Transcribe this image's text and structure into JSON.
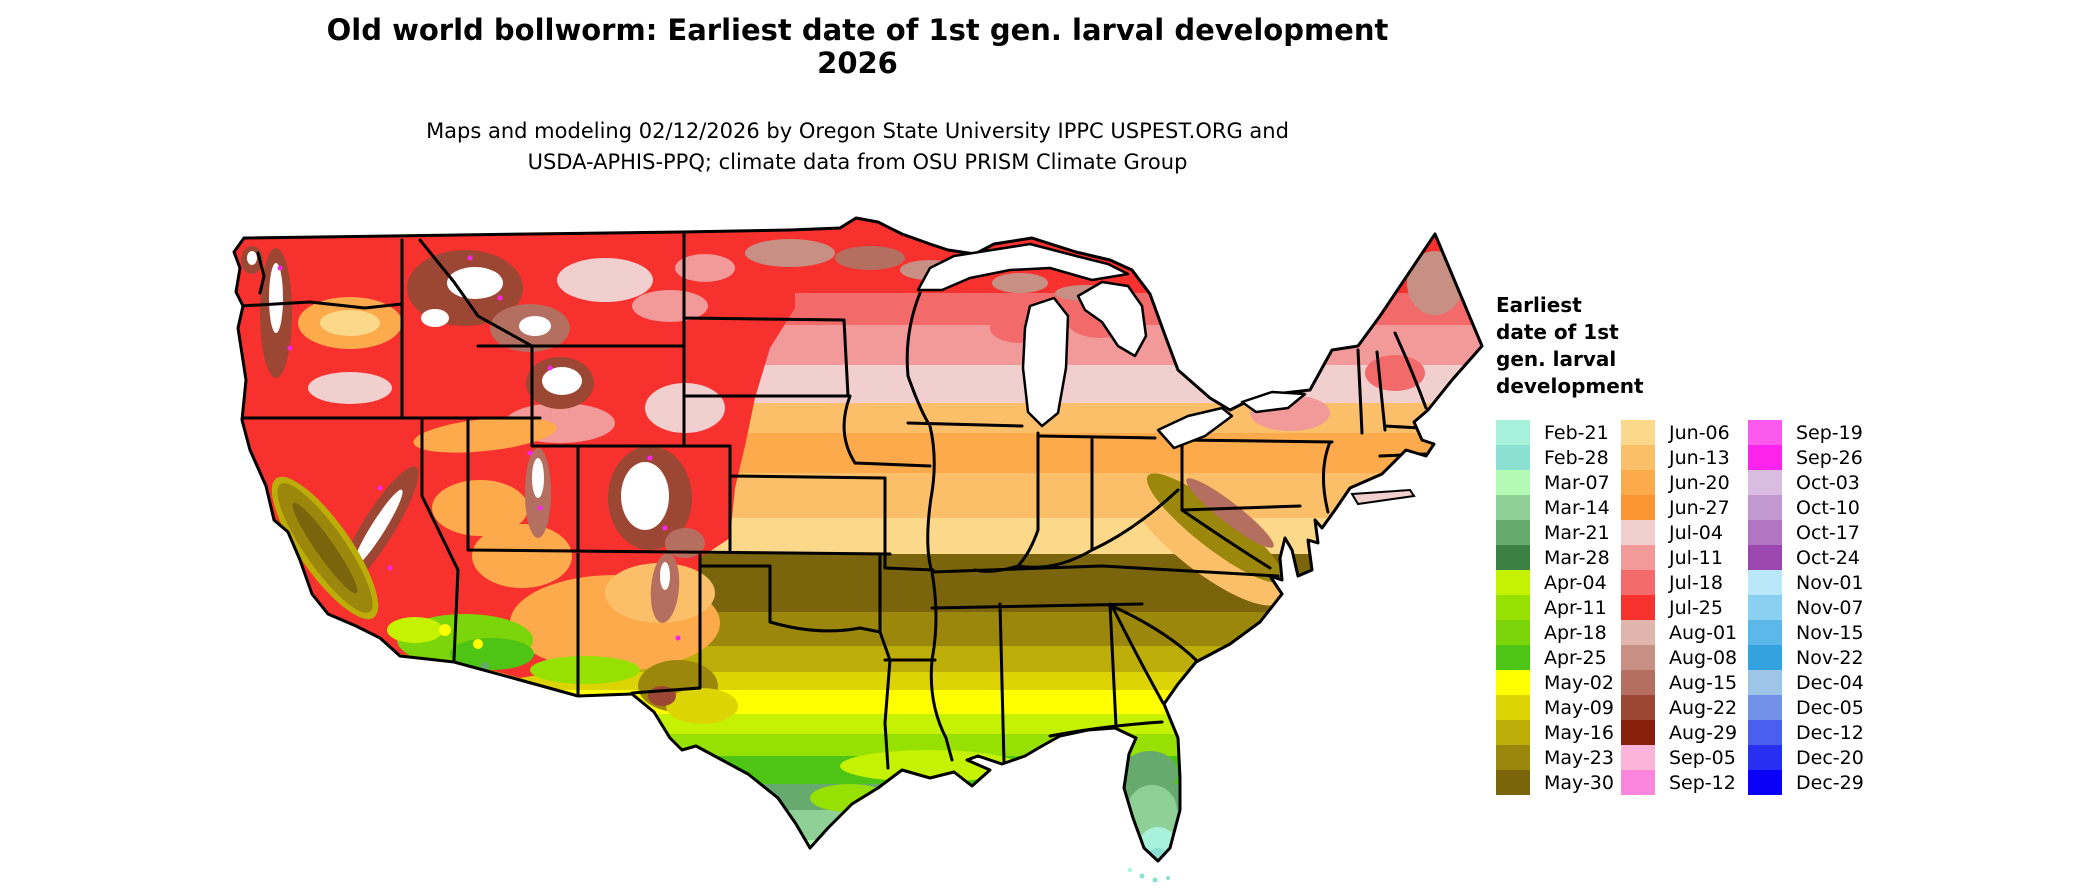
{
  "title": {
    "line1": "Old world bollworm: Earliest date of 1st gen. larval development",
    "line2": "2026"
  },
  "subtitle": {
    "line1": "Maps and modeling 02/12/2026 by Oregon State University IPPC USPEST.ORG and",
    "line2": "USDA-APHIS-PPQ; climate data from OSU PRISM Climate Group"
  },
  "legend": {
    "title_lines": [
      "Earliest",
      "date of 1st",
      "gen. larval",
      "development"
    ],
    "columns": [
      {
        "entries": [
          {
            "label": "Feb-21",
            "color": "#a8f2dc"
          },
          {
            "label": "Feb-28",
            "color": "#8ce0d2"
          },
          {
            "label": "Mar-07",
            "color": "#b4fab4"
          },
          {
            "label": "Mar-14",
            "color": "#8ed096"
          },
          {
            "label": "Mar-21",
            "color": "#66aa6e"
          },
          {
            "label": "Mar-28",
            "color": "#3c8044"
          },
          {
            "label": "Apr-04",
            "color": "#c4f202"
          },
          {
            "label": "Apr-11",
            "color": "#96e002"
          },
          {
            "label": "Apr-18",
            "color": "#7cd40a"
          },
          {
            "label": "Apr-25",
            "color": "#4ec414"
          },
          {
            "label": "May-02",
            "color": "#ffff00"
          },
          {
            "label": "May-09",
            "color": "#dcd405"
          },
          {
            "label": "May-16",
            "color": "#bdad08"
          },
          {
            "label": "May-23",
            "color": "#9c870d"
          },
          {
            "label": "May-30",
            "color": "#7a650d"
          }
        ]
      },
      {
        "entries": [
          {
            "label": "Jun-06",
            "color": "#fcd88a"
          },
          {
            "label": "Jun-13",
            "color": "#fcbf69"
          },
          {
            "label": "Jun-20",
            "color": "#fcaa4b"
          },
          {
            "label": "Jun-27",
            "color": "#fa9632"
          },
          {
            "label": "Jul-04",
            "color": "#f2cfcf"
          },
          {
            "label": "Jul-11",
            "color": "#f29a9a"
          },
          {
            "label": "Jul-18",
            "color": "#f26a6a"
          },
          {
            "label": "Jul-25",
            "color": "#f7312e"
          },
          {
            "label": "Aug-01",
            "color": "#e0b5ab"
          },
          {
            "label": "Aug-08",
            "color": "#c89084"
          },
          {
            "label": "Aug-15",
            "color": "#b56f60"
          },
          {
            "label": "Aug-22",
            "color": "#9c4733"
          },
          {
            "label": "Aug-29",
            "color": "#871f0c"
          },
          {
            "label": "Sep-05",
            "color": "#fcb4d9"
          },
          {
            "label": "Sep-12",
            "color": "#fc86dd"
          }
        ]
      },
      {
        "entries": [
          {
            "label": "Sep-19",
            "color": "#fc5aed"
          },
          {
            "label": "Sep-26",
            "color": "#fc24ed"
          },
          {
            "label": "Oct-03",
            "color": "#d9bce0"
          },
          {
            "label": "Oct-10",
            "color": "#c397cf"
          },
          {
            "label": "Oct-17",
            "color": "#b275c2"
          },
          {
            "label": "Oct-24",
            "color": "#9c46b0"
          },
          {
            "label": "Nov-01",
            "color": "#b8e8fa"
          },
          {
            "label": "Nov-07",
            "color": "#8ad0f0"
          },
          {
            "label": "Nov-15",
            "color": "#5cb8e8"
          },
          {
            "label": "Nov-22",
            "color": "#32a3de"
          },
          {
            "label": "Dec-04",
            "color": "#9ec4e8"
          },
          {
            "label": "Dec-05",
            "color": "#7491ea"
          },
          {
            "label": "Dec-12",
            "color": "#4a5ef0"
          },
          {
            "label": "Dec-20",
            "color": "#2730f2"
          },
          {
            "label": "Dec-29",
            "color": "#0b00f7"
          }
        ]
      }
    ]
  }
}
